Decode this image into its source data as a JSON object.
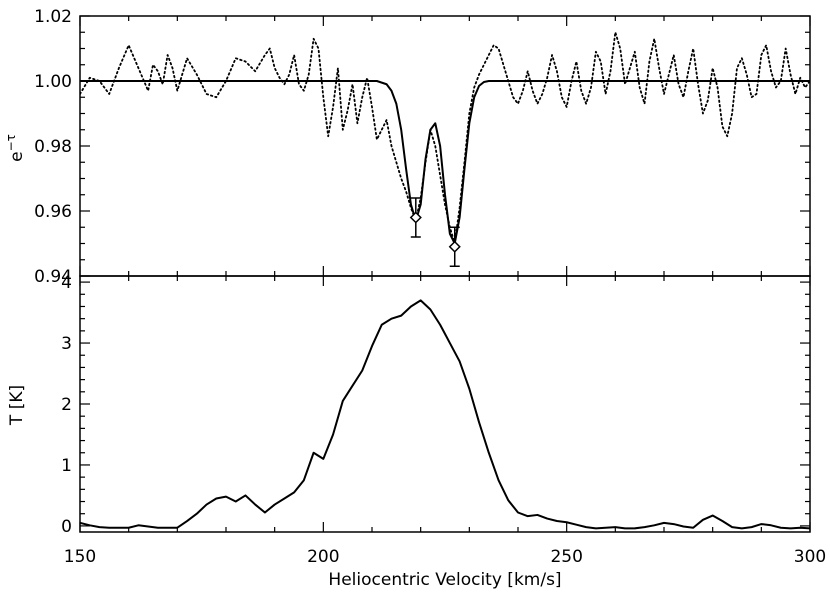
{
  "chart_data": [
    {
      "type": "line",
      "panel": "top",
      "title": "",
      "ylabel_base": "e",
      "ylabel_sup": "−τ",
      "xlim": [
        150,
        300
      ],
      "ylim": [
        0.94,
        1.02
      ],
      "yticks": [
        0.94,
        0.96,
        0.98,
        1.0,
        1.02
      ],
      "ytick_labels": [
        "0.94",
        "0.96",
        "0.98",
        "1.00",
        "1.02"
      ],
      "series": [
        {
          "style": "dotted",
          "x": [
            150,
            152,
            154,
            156,
            158,
            160,
            162,
            164,
            165,
            166,
            167,
            168,
            169,
            170,
            172,
            174,
            176,
            178,
            180,
            182,
            184,
            186,
            188,
            189,
            190,
            191,
            192,
            193,
            194,
            195,
            196,
            197,
            198,
            199,
            200,
            201,
            202,
            203,
            204,
            205,
            206,
            207,
            208,
            209,
            210,
            211,
            212,
            213,
            214,
            215,
            216,
            217,
            218,
            219,
            220,
            221,
            222,
            223,
            224,
            225,
            226,
            227,
            228,
            229,
            230,
            231,
            232,
            233,
            234,
            235,
            236,
            237,
            238,
            239,
            240,
            241,
            242,
            243,
            244,
            245,
            246,
            247,
            248,
            249,
            250,
            251,
            252,
            253,
            254,
            255,
            256,
            257,
            258,
            259,
            260,
            261,
            262,
            263,
            264,
            265,
            266,
            267,
            268,
            269,
            270,
            271,
            272,
            273,
            274,
            275,
            276,
            277,
            278,
            279,
            280,
            281,
            282,
            283,
            284,
            285,
            286,
            287,
            288,
            289,
            290,
            291,
            292,
            293,
            294,
            295,
            296,
            297,
            298,
            299,
            300
          ],
          "values": [
            0.996,
            1.001,
            1.0,
            0.996,
            1.004,
            1.011,
            1.004,
            0.997,
            1.005,
            1.003,
            0.999,
            1.008,
            1.004,
            0.997,
            1.007,
            1.002,
            0.996,
            0.995,
            1.0,
            1.007,
            1.006,
            1.003,
            1.008,
            1.01,
            1.004,
            1.001,
            0.999,
            1.002,
            1.008,
            0.999,
            0.997,
            1.002,
            1.013,
            1.01,
            0.995,
            0.983,
            0.992,
            1.004,
            0.985,
            0.991,
            0.999,
            0.987,
            0.995,
            1.001,
            0.992,
            0.982,
            0.985,
            0.988,
            0.98,
            0.975,
            0.97,
            0.966,
            0.961,
            0.957,
            0.964,
            0.975,
            0.985,
            0.98,
            0.971,
            0.962,
            0.955,
            0.95,
            0.961,
            0.975,
            0.99,
            0.998,
            1.002,
            1.005,
            1.008,
            1.011,
            1.01,
            1.005,
            1.0,
            0.995,
            0.993,
            0.997,
            1.003,
            0.997,
            0.993,
            0.996,
            1.001,
            1.008,
            1.003,
            0.995,
            0.992,
            1.0,
            1.006,
            0.997,
            0.993,
            0.998,
            1.009,
            1.006,
            0.996,
            1.003,
            1.015,
            1.01,
            0.999,
            1.004,
            1.009,
            0.998,
            0.993,
            1.006,
            1.013,
            1.004,
            0.996,
            1.002,
            1.008,
            0.999,
            0.995,
            1.003,
            1.01,
            0.999,
            0.99,
            0.994,
            1.004,
            0.998,
            0.986,
            0.983,
            0.99,
            1.004,
            1.007,
            1.002,
            0.995,
            0.996,
            1.008,
            1.011,
            1.003,
            0.998,
            1.0,
            1.01,
            1.002,
            0.996,
            1.001,
            0.998,
            1.0
          ]
        },
        {
          "style": "solid",
          "x": [
            150,
            210,
            211,
            212,
            213,
            214,
            215,
            216,
            217,
            218,
            219,
            220,
            221,
            222,
            223,
            224,
            225,
            226,
            227,
            228,
            229,
            230,
            231,
            232,
            233,
            234,
            235,
            300
          ],
          "values": [
            1.0,
            1.0,
            1.0,
            0.9995,
            0.999,
            0.997,
            0.993,
            0.985,
            0.973,
            0.962,
            0.957,
            0.962,
            0.976,
            0.985,
            0.987,
            0.98,
            0.965,
            0.953,
            0.95,
            0.958,
            0.973,
            0.987,
            0.995,
            0.9985,
            0.9997,
            1.0,
            1.0,
            1.0
          ]
        }
      ],
      "error_points": [
        {
          "x": 219,
          "y": 0.958,
          "err": 0.006
        },
        {
          "x": 227,
          "y": 0.949,
          "err": 0.006
        }
      ]
    },
    {
      "type": "line",
      "panel": "bottom",
      "title": "",
      "xlabel": "Heliocentric Velocity [km/s]",
      "ylabel": "T [K]",
      "xlim": [
        150,
        300
      ],
      "ylim": [
        -0.1,
        4.1
      ],
      "xticks": [
        150,
        200,
        250,
        300
      ],
      "xtick_labels": [
        "150",
        "200",
        "250",
        "300"
      ],
      "yticks": [
        0,
        1,
        2,
        3,
        4
      ],
      "ytick_labels": [
        "0",
        "1",
        "2",
        "3",
        "4"
      ],
      "series": [
        {
          "style": "solid",
          "x": [
            150,
            152,
            154,
            156,
            158,
            160,
            162,
            164,
            166,
            168,
            170,
            172,
            174,
            176,
            178,
            180,
            182,
            184,
            186,
            188,
            190,
            192,
            194,
            196,
            198,
            200,
            202,
            204,
            206,
            208,
            210,
            212,
            214,
            216,
            218,
            220,
            222,
            224,
            225,
            226,
            228,
            230,
            232,
            234,
            236,
            238,
            240,
            242,
            244,
            246,
            248,
            250,
            252,
            254,
            256,
            258,
            260,
            262,
            264,
            266,
            268,
            270,
            272,
            274,
            276,
            278,
            280,
            282,
            284,
            286,
            288,
            290,
            292,
            294,
            296,
            298,
            300
          ],
          "values": [
            0.05,
            0.01,
            -0.02,
            -0.03,
            -0.03,
            -0.03,
            0.01,
            -0.01,
            -0.03,
            -0.03,
            -0.03,
            0.08,
            0.2,
            0.35,
            0.45,
            0.48,
            0.4,
            0.5,
            0.35,
            0.22,
            0.35,
            0.45,
            0.55,
            0.75,
            1.2,
            1.1,
            1.5,
            2.05,
            2.3,
            2.55,
            2.95,
            3.3,
            3.4,
            3.45,
            3.6,
            3.7,
            3.55,
            3.3,
            3.15,
            3.0,
            2.7,
            2.25,
            1.7,
            1.2,
            0.75,
            0.42,
            0.22,
            0.16,
            0.18,
            0.12,
            0.08,
            0.06,
            0.02,
            -0.02,
            -0.04,
            -0.03,
            -0.02,
            -0.04,
            -0.04,
            -0.02,
            0.01,
            0.05,
            0.03,
            -0.01,
            -0.03,
            0.1,
            0.17,
            0.08,
            -0.02,
            -0.04,
            -0.02,
            0.03,
            0.01,
            -0.03,
            -0.04,
            -0.03,
            -0.04
          ]
        }
      ]
    }
  ]
}
